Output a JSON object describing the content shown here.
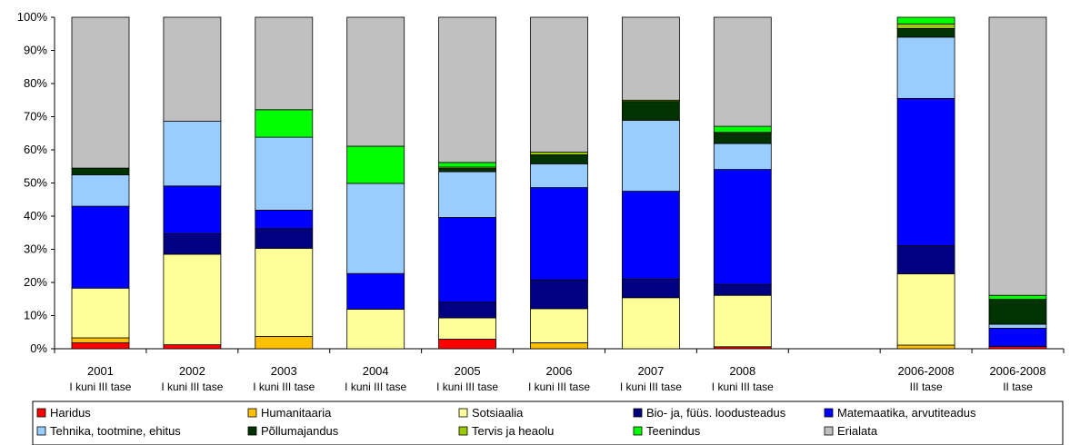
{
  "chart_data": {
    "type": "bar",
    "stacked": true,
    "percent": true,
    "ylim": [
      0,
      100
    ],
    "yticks": [
      "0%",
      "10%",
      "20%",
      "30%",
      "40%",
      "50%",
      "60%",
      "70%",
      "80%",
      "90%",
      "100%"
    ],
    "legend_position": "bottom",
    "categories": [
      {
        "line1": "2001",
        "line2": "I kuni III tase"
      },
      {
        "line1": "2002",
        "line2": "I kuni III tase"
      },
      {
        "line1": "2003",
        "line2": "I kuni III tase"
      },
      {
        "line1": "2004",
        "line2": "I kuni III tase"
      },
      {
        "line1": "2005",
        "line2": "I kuni III tase"
      },
      {
        "line1": "2006",
        "line2": "I kuni III tase"
      },
      {
        "line1": "2007",
        "line2": "I kuni III tase"
      },
      {
        "line1": "2008",
        "line2": "I kuni III tase"
      },
      {
        "line1": "",
        "line2": ""
      },
      {
        "line1": "2006-2008",
        "line2": "III tase"
      },
      {
        "line1": "2006-2008",
        "line2": "II tase"
      }
    ],
    "series": [
      {
        "name": "Haridus",
        "color": "#ff0000",
        "values": [
          1.8,
          1.2,
          0,
          0,
          2.9,
          0,
          0,
          0.6,
          null,
          0,
          0.7
        ]
      },
      {
        "name": "Humanitaaria",
        "color": "#ffc000",
        "values": [
          1.5,
          0,
          3.7,
          0,
          0,
          1.8,
          0,
          0,
          null,
          1.1,
          0
        ]
      },
      {
        "name": "Sotsiaalia",
        "color": "#ffff99",
        "values": [
          15.0,
          27.3,
          26.6,
          11.9,
          6.4,
          10.3,
          15.4,
          15.5,
          null,
          21.5,
          0
        ]
      },
      {
        "name": "Bio- ja, füüs. loodusteadus",
        "color": "#000080",
        "values": [
          0,
          6.2,
          5.9,
          0,
          4.7,
          8.7,
          5.6,
          3.3,
          null,
          8.5,
          0
        ]
      },
      {
        "name": "Matemaatika, arvutiteadus",
        "color": "#0000ff",
        "values": [
          24.7,
          14.4,
          5.6,
          10.8,
          25.6,
          27.8,
          26.5,
          34.7,
          null,
          44.4,
          5.5
        ]
      },
      {
        "name": "Tehnika, tootmine, ehitus",
        "color": "#99ccff",
        "values": [
          9.5,
          19.5,
          22.0,
          27.2,
          13.8,
          7.2,
          21.4,
          7.8,
          null,
          18.5,
          1.2
        ]
      },
      {
        "name": "Põllumajandus",
        "color": "#003300",
        "values": [
          2.0,
          0,
          0,
          0,
          1.0,
          2.7,
          5.7,
          3.1,
          null,
          2.6,
          7.5
        ]
      },
      {
        "name": "Tervis ja heaolu",
        "color": "#99cc00",
        "values": [
          0,
          0,
          0,
          0,
          0.4,
          0.8,
          0.4,
          0.3,
          null,
          1.4,
          0
        ]
      },
      {
        "name": "Teenindus",
        "color": "#00ff00",
        "values": [
          0,
          0,
          8.3,
          11.2,
          1.4,
          0,
          0,
          1.8,
          null,
          2.0,
          1.2
        ]
      },
      {
        "name": "Erialata",
        "color": "#c0c0c0",
        "values": [
          45.5,
          31.4,
          27.9,
          38.9,
          43.8,
          40.7,
          25.0,
          32.9,
          null,
          0,
          83.9
        ]
      }
    ]
  }
}
